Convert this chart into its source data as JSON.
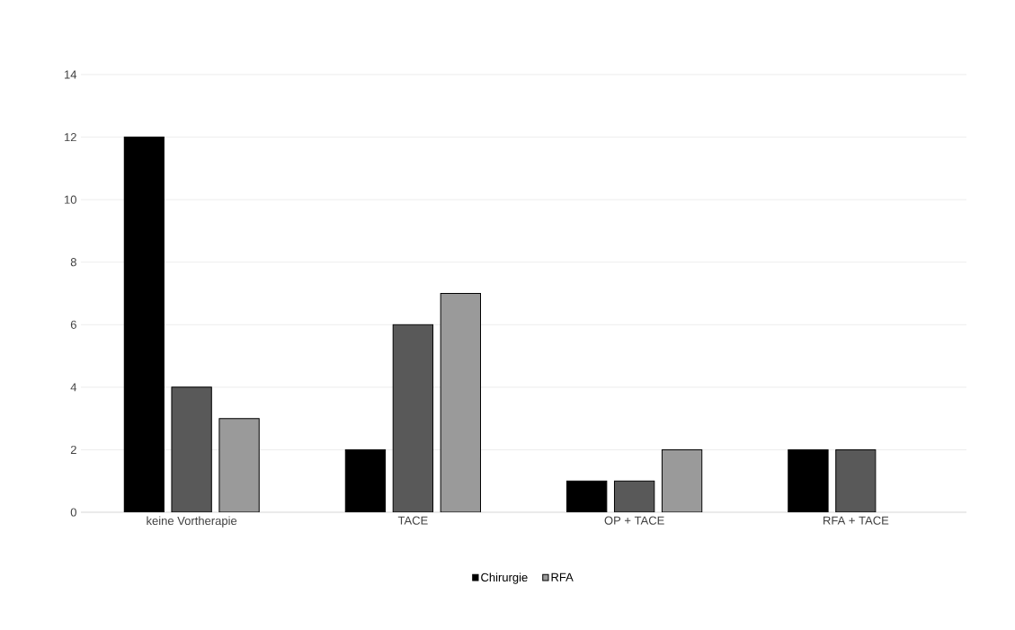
{
  "chart_data": {
    "type": "bar",
    "categories": [
      "keine Vortherapie",
      "TACE",
      "OP + TACE",
      "RFA + TACE"
    ],
    "series": [
      {
        "name": "Chirurgie",
        "color": "#000000",
        "values": [
          12,
          2,
          1,
          2
        ]
      },
      {
        "color": "#595959",
        "values": [
          4,
          6,
          1,
          2
        ]
      },
      {
        "name": "RFA",
        "color": "#9a9a9a",
        "values": [
          3,
          7,
          2,
          null
        ]
      }
    ],
    "ylim": [
      0,
      14
    ],
    "yticks": [
      0,
      2,
      4,
      6,
      8,
      10,
      12,
      14
    ],
    "grid": "y",
    "legend": "bottom"
  }
}
